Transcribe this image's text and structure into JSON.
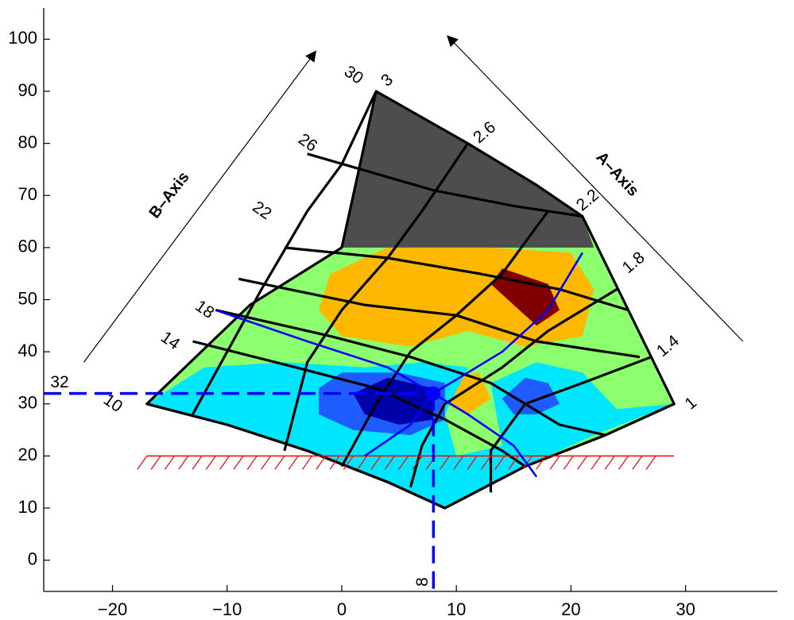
{
  "chart_data": {
    "type": "contour",
    "xlim": [
      -26,
      38
    ],
    "ylim": [
      -6,
      106
    ],
    "x_ticks": [
      -20,
      -10,
      0,
      10,
      20,
      30
    ],
    "y_ticks": [
      0,
      10,
      20,
      30,
      40,
      50,
      60,
      70,
      80,
      90,
      100
    ],
    "x_tick_labels": [
      "−20",
      "−10",
      "0",
      "10",
      "20",
      "30"
    ],
    "y_tick_labels": [
      "0",
      "10",
      "20",
      "30",
      "40",
      "50",
      "60",
      "70",
      "80",
      "90",
      "100"
    ],
    "grid": false,
    "colors": {
      "gray": "#4d4d4d",
      "green": "#8cff6e",
      "orange": "#ffb800",
      "darkred": "#800000",
      "cyan": "#00e6ff",
      "blue": "#1e5cff",
      "navy": "#0000a8",
      "line_blue": "#0000ff",
      "floor_red": "#ff0000",
      "grid_black": "#000000"
    },
    "outline": [
      [
        -17,
        30
      ],
      [
        -8,
        49
      ],
      [
        0,
        60
      ],
      [
        3,
        90
      ],
      [
        11,
        80
      ],
      [
        17,
        72
      ],
      [
        21,
        66
      ],
      [
        23,
        57
      ],
      [
        25,
        48
      ],
      [
        27,
        39
      ],
      [
        29,
        30
      ],
      [
        23,
        24
      ],
      [
        16,
        18
      ],
      [
        9,
        10
      ],
      [
        4,
        15
      ],
      [
        -3,
        21
      ],
      [
        -10,
        26
      ],
      [
        -17,
        30
      ]
    ],
    "gray_region": [
      [
        -5,
        60
      ],
      [
        3,
        90
      ],
      [
        11,
        80
      ],
      [
        17,
        72
      ],
      [
        21,
        66
      ],
      [
        22,
        60
      ]
    ],
    "b_axis": {
      "title": "B–Axis",
      "labels": [
        "10",
        "14",
        "18",
        "22",
        "26",
        "30"
      ],
      "lines": [
        [
          [
            -17,
            30
          ],
          [
            -10,
            26
          ],
          [
            -3,
            21
          ],
          [
            4,
            15
          ],
          [
            9,
            10
          ]
        ],
        [
          [
            -13,
            42
          ],
          [
            -4,
            37
          ],
          [
            3,
            33
          ],
          [
            9,
            27
          ],
          [
            14,
            21
          ],
          [
            16,
            18
          ]
        ],
        [
          [
            -11,
            48
          ],
          [
            -1,
            43
          ],
          [
            6,
            39
          ],
          [
            13,
            34
          ],
          [
            19,
            26
          ],
          [
            23,
            24
          ]
        ],
        [
          [
            -9,
            54
          ],
          [
            2,
            49
          ],
          [
            10,
            47
          ],
          [
            17,
            42
          ],
          [
            26,
            39
          ]
        ],
        [
          [
            -5,
            60
          ],
          [
            4,
            58
          ],
          [
            12,
            55
          ],
          [
            19,
            52
          ],
          [
            25,
            48
          ]
        ],
        [
          [
            -3,
            78
          ],
          [
            8,
            71
          ],
          [
            15,
            68
          ],
          [
            21,
            66
          ]
        ]
      ]
    },
    "a_axis": {
      "title": "A–Axis",
      "labels": [
        "1",
        "1.4",
        "1.8",
        "2.2",
        "2.6",
        "3"
      ],
      "lines": [
        [
          [
            29,
            30
          ],
          [
            23,
            24
          ],
          [
            16,
            18
          ],
          [
            9,
            10
          ]
        ],
        [
          [
            27,
            39
          ],
          [
            21,
            34
          ],
          [
            16,
            30
          ],
          [
            13,
            21
          ],
          [
            13,
            13
          ]
        ],
        [
          [
            24,
            52
          ],
          [
            18,
            44
          ],
          [
            14,
            37
          ],
          [
            9,
            30
          ],
          [
            7,
            22
          ],
          [
            6,
            14
          ]
        ],
        [
          [
            18,
            67
          ],
          [
            14,
            55
          ],
          [
            10,
            47
          ],
          [
            6,
            40
          ],
          [
            3,
            30
          ],
          [
            0,
            18
          ]
        ],
        [
          [
            11,
            80
          ],
          [
            7,
            67
          ],
          [
            4,
            58
          ],
          [
            0,
            48
          ],
          [
            -3,
            38
          ],
          [
            -5,
            21
          ]
        ],
        [
          [
            3,
            90
          ],
          [
            0,
            76
          ],
          [
            -3,
            67
          ],
          [
            -7,
            52
          ],
          [
            -10,
            40
          ],
          [
            -13,
            28
          ]
        ]
      ]
    },
    "floor_line": {
      "y": 20,
      "x_start": -17,
      "x_end": 29
    },
    "ref_point": {
      "x": 8,
      "y": 32,
      "x_label": "8",
      "y_label": "32"
    },
    "a_arrow_label": "A–Axis",
    "b_arrow_label": "B–Axis"
  }
}
